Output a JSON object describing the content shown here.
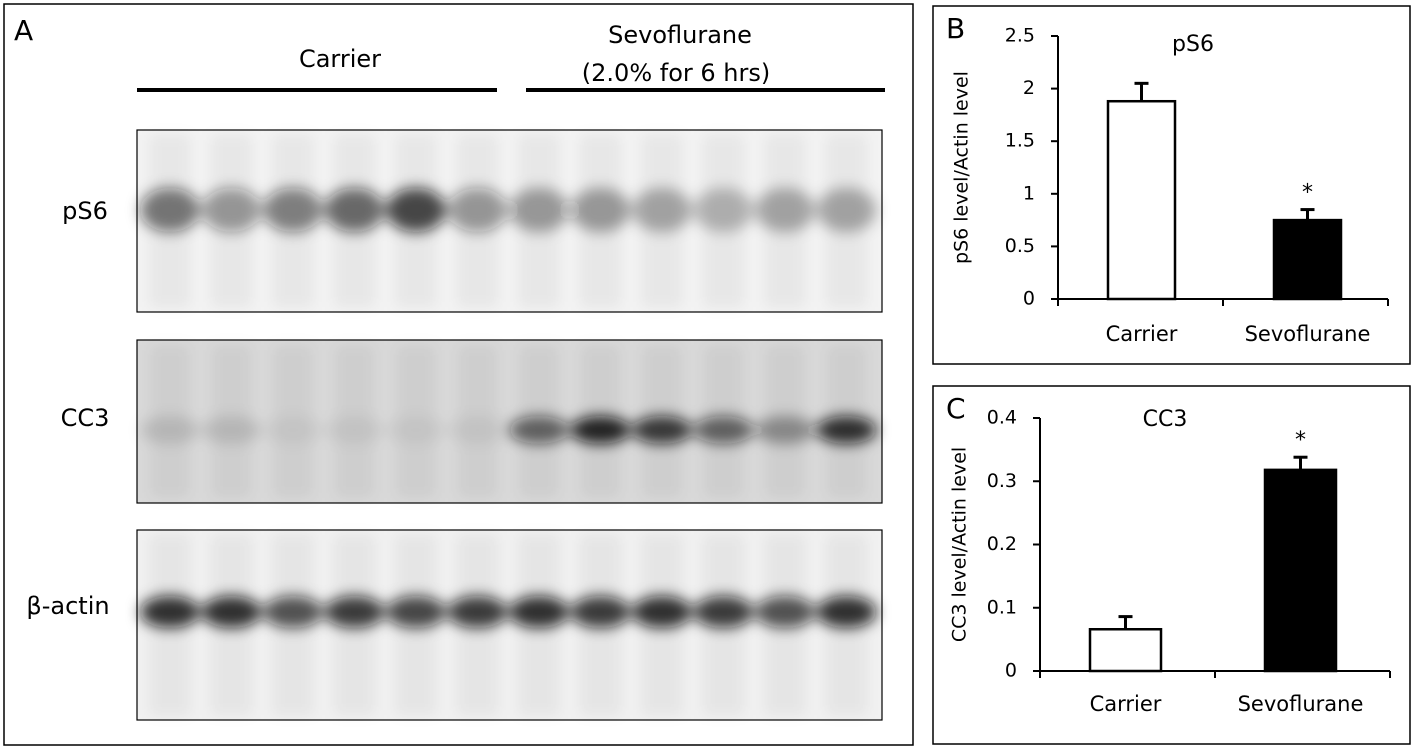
{
  "panel_a": {
    "label": "A",
    "groups": [
      {
        "name": "Carrier"
      },
      {
        "name": "Sevoflurane",
        "condition": "(2.0% for 6 hrs)"
      }
    ],
    "rows": [
      "pS6",
      "CC3",
      "β-actin"
    ]
  },
  "chart_data": [
    {
      "type": "bar",
      "label": "B",
      "title": "pS6",
      "y_label": "pS6 level/Actin level",
      "categories": [
        "Carrier",
        "Sevoflurane"
      ],
      "values": [
        1.88,
        0.75
      ],
      "errors": [
        0.17,
        0.1
      ],
      "colors": [
        "#ffffff",
        "#000000"
      ],
      "significance": [
        null,
        "*"
      ],
      "ylim": [
        0,
        2.5
      ],
      "yticks": [
        0,
        0.5,
        1,
        1.5,
        2,
        2.5
      ]
    },
    {
      "type": "bar",
      "label": "C",
      "title": "CC3",
      "y_label": "CC3 level/Actin level",
      "categories": [
        "Carrier",
        "Sevoflurane"
      ],
      "values": [
        0.066,
        0.318
      ],
      "errors": [
        0.02,
        0.02
      ],
      "colors": [
        "#ffffff",
        "#000000"
      ],
      "significance": [
        null,
        "*"
      ],
      "ylim": [
        0,
        0.4
      ],
      "yticks": [
        0,
        0.1,
        0.2,
        0.3,
        0.4
      ]
    }
  ]
}
